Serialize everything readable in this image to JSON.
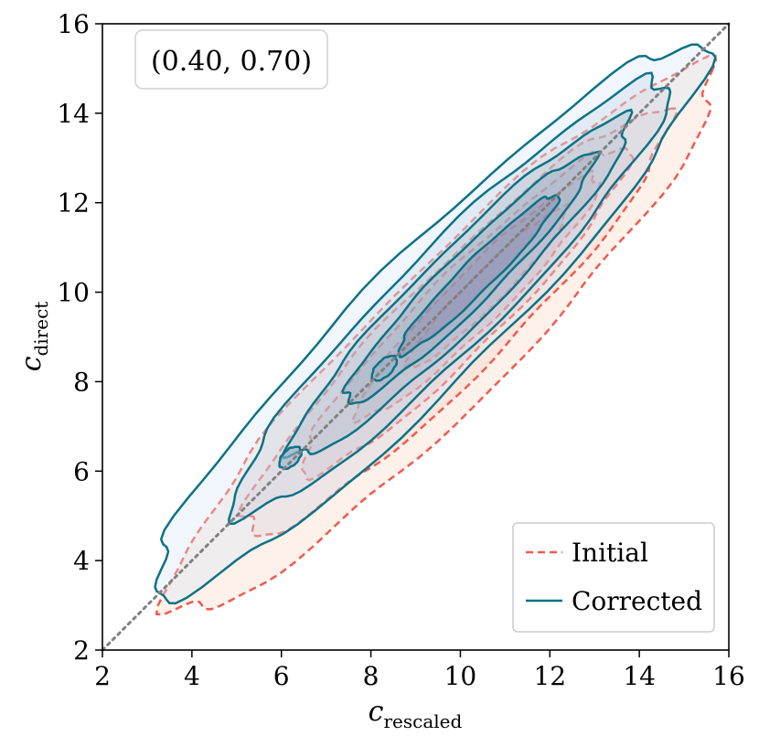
{
  "chart_data": {
    "type": "contour",
    "annotation": "(0.40, 0.70)",
    "xlabel": "c",
    "xlabel_sub": "rescaled",
    "ylabel": "c",
    "ylabel_sub": "direct",
    "xlim": [
      2,
      16
    ],
    "ylim": [
      2,
      16
    ],
    "xticks": [
      "2",
      "4",
      "6",
      "8",
      "10",
      "12",
      "14",
      "16"
    ],
    "yticks": [
      "2",
      "4",
      "6",
      "8",
      "10",
      "12",
      "14",
      "16"
    ],
    "reference_line": {
      "style": "dotted",
      "color": "#808080",
      "from": [
        2,
        2
      ],
      "to": [
        16,
        16
      ]
    },
    "legend": {
      "placement": "bottom-right"
    },
    "series": [
      {
        "name": "Initial",
        "style": "dashed",
        "color": "#f05a4f",
        "fill": "#fbd7c2",
        "levels": [
          {
            "center": [
              9.6,
              8.9
            ],
            "length": 17.0,
            "width": 3.0
          },
          {
            "center": [
              9.9,
              9.3
            ],
            "length": 13.2,
            "width": 2.3
          },
          {
            "center": [
              10.1,
              9.6
            ],
            "length": 10.2,
            "width": 1.7
          },
          {
            "center": [
              10.4,
              9.9
            ],
            "length": 7.6,
            "width": 1.2
          },
          {
            "center": [
              10.6,
              10.1
            ],
            "length": 5.0,
            "width": 0.75
          }
        ]
      },
      {
        "name": "Corrected",
        "style": "solid",
        "color": "#0c7285",
        "fill": "#d6e6f5",
        "levels": [
          {
            "center": [
              9.3,
              9.4
            ],
            "length": 17.2,
            "width": 2.9
          },
          {
            "center": [
              9.8,
              9.9
            ],
            "length": 13.6,
            "width": 2.25
          },
          {
            "center": [
              10.0,
              10.1
            ],
            "length": 10.6,
            "width": 1.65
          },
          {
            "center": [
              10.2,
              10.3
            ],
            "length": 7.8,
            "width": 1.15
          },
          {
            "center": [
              10.4,
              10.4
            ],
            "length": 5.0,
            "width": 0.7
          }
        ],
        "islands": [
          {
            "center": [
              6.2,
              6.3
            ],
            "length": 0.6,
            "width": 0.35
          },
          {
            "center": [
              8.3,
              8.3
            ],
            "length": 0.7,
            "width": 0.35
          }
        ]
      }
    ]
  }
}
